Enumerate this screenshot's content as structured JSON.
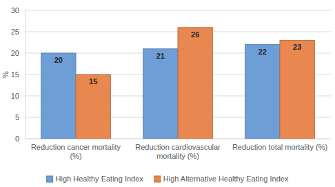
{
  "chart_data": {
    "type": "bar",
    "y_label": "%",
    "categories": [
      "Reduction cancer mortality (%)",
      "Reduction cardiovascular mortality (%)",
      "Reduction total mortality (%)"
    ],
    "series": [
      {
        "name": "High Healthy Eating Index",
        "color": "#6d9fd6",
        "values": [
          20,
          21,
          22
        ]
      },
      {
        "name": "High Alternative Healthy Eating Index",
        "color": "#e8874f",
        "values": [
          15,
          26,
          23
        ]
      }
    ],
    "ylim": [
      0,
      30
    ],
    "yticks": [
      0,
      5,
      10,
      15,
      20,
      25,
      30
    ],
    "grid": true,
    "legend": "bottom",
    "data_labels": true
  }
}
